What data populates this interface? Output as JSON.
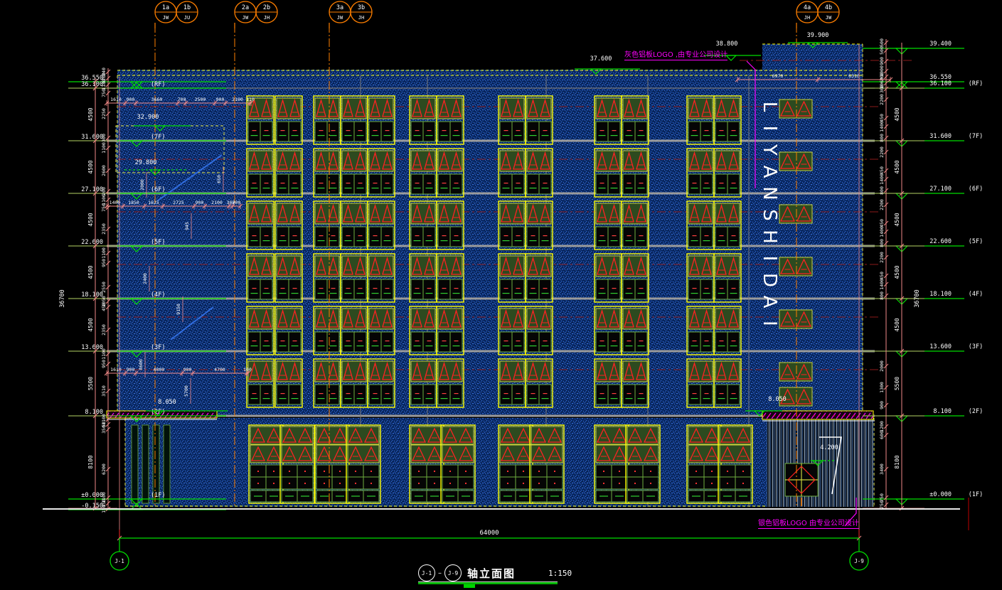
{
  "drawing": {
    "type": "building-elevation-cad",
    "scale": "1:150",
    "signage_text": "LIYANSHIDAI"
  },
  "title_block": {
    "axis_start": "J-1",
    "axis_end": "J-9",
    "title": "轴立面图",
    "scale": "1:150"
  },
  "annotations": {
    "top_logo_note": "灰色铝板LOGO ,由专业公司设计",
    "bottom_logo_note": "银色铝板LOGO  由专业公司设计"
  },
  "grid_axes_top": [
    {
      "top": "1a",
      "bottom": "JW"
    },
    {
      "top": "1b",
      "bottom": "JU"
    },
    {
      "top": "2a",
      "bottom": "JW"
    },
    {
      "top": "2b",
      "bottom": "JH"
    },
    {
      "top": "3a",
      "bottom": "JW"
    },
    {
      "top": "3b",
      "bottom": "JH"
    },
    {
      "top": "4a",
      "bottom": "JH"
    },
    {
      "top": "4b",
      "bottom": "JW"
    }
  ],
  "grid_axes_bottom": [
    "J-1",
    "J-9"
  ],
  "left_levels": [
    {
      "value": "36.550",
      "floor": ""
    },
    {
      "value": "36.100",
      "floor": "(RF)"
    },
    {
      "value": "31.600",
      "floor": "(7F)"
    },
    {
      "value": "27.100",
      "floor": "(6F)"
    },
    {
      "value": "22.600",
      "floor": "(5F)"
    },
    {
      "value": "18.100",
      "floor": "(4F)"
    },
    {
      "value": "13.600",
      "floor": "(3F)"
    },
    {
      "value": "8.100",
      "floor": "(2F)"
    },
    {
      "value": "±0.000",
      "floor": "(1F)"
    },
    {
      "value": "-0.150",
      "floor": ""
    }
  ],
  "right_levels": [
    {
      "value": "39.400",
      "floor": ""
    },
    {
      "value": "36.550",
      "floor": ""
    },
    {
      "value": "36.100",
      "floor": "(RF)"
    },
    {
      "value": "31.600",
      "floor": "(7F)"
    },
    {
      "value": "27.100",
      "floor": "(6F)"
    },
    {
      "value": "22.600",
      "floor": "(5F)"
    },
    {
      "value": "18.100",
      "floor": "(4F)"
    },
    {
      "value": "13.600",
      "floor": "(3F)"
    },
    {
      "value": "8.100",
      "floor": "(2F)"
    },
    {
      "value": "±0.000",
      "floor": "(1F)"
    }
  ],
  "spot_levels": {
    "roof_block_top": "39.900",
    "roof_step": "38.800",
    "main_roof": "37.600",
    "sign_top": "32.900",
    "sign_bottom": "29.800",
    "canopy_left": "8.050",
    "canopy_right": "8.050",
    "entrance": "4.200"
  },
  "dimensions": {
    "overall_width": "64000",
    "total_height": "36700",
    "floor_heights": [
      "4500",
      "4500",
      "4500",
      "4500",
      "4500",
      "5500",
      "8100"
    ],
    "left_small": [
      "240",
      "1200",
      "1180",
      "750",
      "2250",
      "300",
      "1100",
      "2600",
      "200",
      "1100",
      "750",
      "2350",
      "1100",
      "950",
      "2550",
      "1050",
      "450",
      "2350",
      "1100",
      "950",
      "3510",
      "1100",
      "50",
      "350",
      "6200",
      "1100",
      "150",
      "150"
    ],
    "right_small": [
      "500",
      "500",
      "900",
      "1000",
      "200",
      "1060",
      "300",
      "2200",
      "450",
      "1400",
      "800",
      "2200",
      "450",
      "1400",
      "800",
      "2200",
      "450",
      "1400",
      "800",
      "2200",
      "450",
      "1400",
      "800",
      "2000",
      "1300",
      "900",
      "1200",
      "600",
      "3400",
      "750",
      "750"
    ],
    "top_chain": [
      "1610",
      "900",
      "3660",
      "700",
      "2500",
      "900",
      "2100",
      "110"
    ],
    "mid_chain": [
      "1400",
      "1850",
      "1625",
      "2725",
      "900",
      "2100",
      "300",
      "700"
    ],
    "low_chain": [
      "1610",
      "900",
      "4000",
      "900",
      "4700",
      "100"
    ],
    "right_top_chain": [
      "6970",
      "6310"
    ],
    "misc_vertical": [
      "2000",
      "9150",
      "2400",
      "650",
      "945",
      "5700",
      "8600"
    ]
  },
  "colors": {
    "background": "#000000",
    "facade_blue": "#0a2b68",
    "facade_dot": "#3a6fd8",
    "window_frame_yellow": "#ffff00",
    "window_green": "#6fae3f",
    "louver_green_bg": "#2d4a1f",
    "louver_red": "#ff2222",
    "dim_pink": "#f08987",
    "centerline_red": "#8b1a1a",
    "level_green": "#00dc00",
    "grid_orange": "#ff7f00",
    "note_magenta": "#ff00ff",
    "band_gray": "#9b9b9b",
    "text_white": "#ffffff"
  }
}
